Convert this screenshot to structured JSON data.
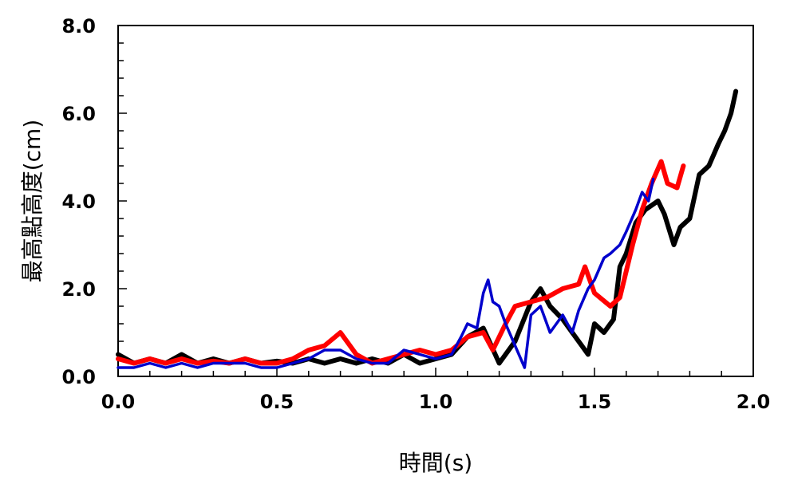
{
  "chart_data": {
    "type": "line",
    "title": "",
    "xlabel": "時間(s)",
    "ylabel": "最高點高度(cm)",
    "xlim": [
      0.0,
      2.0
    ],
    "ylim": [
      0.0,
      8.0
    ],
    "x_ticks": [
      "0.0",
      "0.5",
      "1.0",
      "1.5",
      "2.0"
    ],
    "y_ticks": [
      "0.0",
      "2.0",
      "4.0",
      "6.0",
      "8.0"
    ],
    "x_minor_step": 0.1,
    "y_minor_step": 0.4,
    "grid": false,
    "legend": "none",
    "series": [
      {
        "color": "#000000",
        "x": [
          0.0,
          0.05,
          0.1,
          0.15,
          0.2,
          0.25,
          0.3,
          0.35,
          0.4,
          0.45,
          0.5,
          0.55,
          0.6,
          0.65,
          0.7,
          0.75,
          0.8,
          0.85,
          0.9,
          0.95,
          1.0,
          1.05,
          1.1,
          1.15,
          1.2,
          1.25,
          1.3,
          1.33,
          1.36,
          1.4,
          1.43,
          1.46,
          1.48,
          1.5,
          1.53,
          1.56,
          1.58,
          1.6,
          1.63,
          1.66,
          1.7,
          1.72,
          1.75,
          1.77,
          1.8,
          1.83,
          1.86,
          1.89,
          1.91,
          1.93,
          1.945
        ],
        "y": [
          0.5,
          0.3,
          0.4,
          0.3,
          0.5,
          0.3,
          0.4,
          0.3,
          0.4,
          0.3,
          0.35,
          0.3,
          0.4,
          0.3,
          0.4,
          0.3,
          0.4,
          0.3,
          0.5,
          0.3,
          0.4,
          0.5,
          0.9,
          1.1,
          0.3,
          0.8,
          1.7,
          2.0,
          1.6,
          1.3,
          1.0,
          0.7,
          0.5,
          1.2,
          1.0,
          1.3,
          2.5,
          2.8,
          3.5,
          3.8,
          4.0,
          3.7,
          3.0,
          3.4,
          3.6,
          4.6,
          4.8,
          5.3,
          5.6,
          6.0,
          6.5
        ]
      },
      {
        "color": "#ff0000",
        "x": [
          0.0,
          0.05,
          0.1,
          0.15,
          0.2,
          0.25,
          0.3,
          0.35,
          0.4,
          0.45,
          0.5,
          0.55,
          0.6,
          0.65,
          0.7,
          0.72,
          0.75,
          0.8,
          0.85,
          0.9,
          0.95,
          1.0,
          1.05,
          1.1,
          1.15,
          1.18,
          1.22,
          1.25,
          1.3,
          1.35,
          1.4,
          1.45,
          1.47,
          1.5,
          1.55,
          1.58,
          1.62,
          1.65,
          1.68,
          1.71,
          1.73,
          1.76,
          1.78
        ],
        "y": [
          0.4,
          0.3,
          0.4,
          0.3,
          0.4,
          0.3,
          0.35,
          0.3,
          0.4,
          0.3,
          0.3,
          0.4,
          0.6,
          0.7,
          1.0,
          0.8,
          0.5,
          0.3,
          0.4,
          0.5,
          0.6,
          0.5,
          0.6,
          0.9,
          1.0,
          0.6,
          1.2,
          1.6,
          1.7,
          1.8,
          2.0,
          2.1,
          2.5,
          1.9,
          1.6,
          1.8,
          3.0,
          3.8,
          4.4,
          4.9,
          4.4,
          4.3,
          4.8
        ]
      },
      {
        "color": "#0000cc",
        "x": [
          0.0,
          0.05,
          0.1,
          0.15,
          0.2,
          0.25,
          0.3,
          0.35,
          0.4,
          0.45,
          0.5,
          0.55,
          0.6,
          0.65,
          0.7,
          0.75,
          0.8,
          0.85,
          0.9,
          0.95,
          1.0,
          1.05,
          1.08,
          1.1,
          1.13,
          1.15,
          1.165,
          1.18,
          1.2,
          1.22,
          1.25,
          1.28,
          1.3,
          1.33,
          1.36,
          1.4,
          1.43,
          1.45,
          1.48,
          1.5,
          1.53,
          1.55,
          1.58,
          1.6,
          1.63,
          1.65,
          1.67,
          1.685
        ],
        "y": [
          0.2,
          0.2,
          0.3,
          0.2,
          0.3,
          0.2,
          0.3,
          0.3,
          0.3,
          0.2,
          0.2,
          0.3,
          0.4,
          0.6,
          0.6,
          0.4,
          0.3,
          0.3,
          0.6,
          0.5,
          0.4,
          0.5,
          0.9,
          1.2,
          1.1,
          1.9,
          2.2,
          1.7,
          1.6,
          1.2,
          0.7,
          0.2,
          1.4,
          1.6,
          1.0,
          1.4,
          1.0,
          1.5,
          2.0,
          2.2,
          2.7,
          2.8,
          3.0,
          3.3,
          3.8,
          4.2,
          4.0,
          4.5
        ]
      }
    ]
  }
}
